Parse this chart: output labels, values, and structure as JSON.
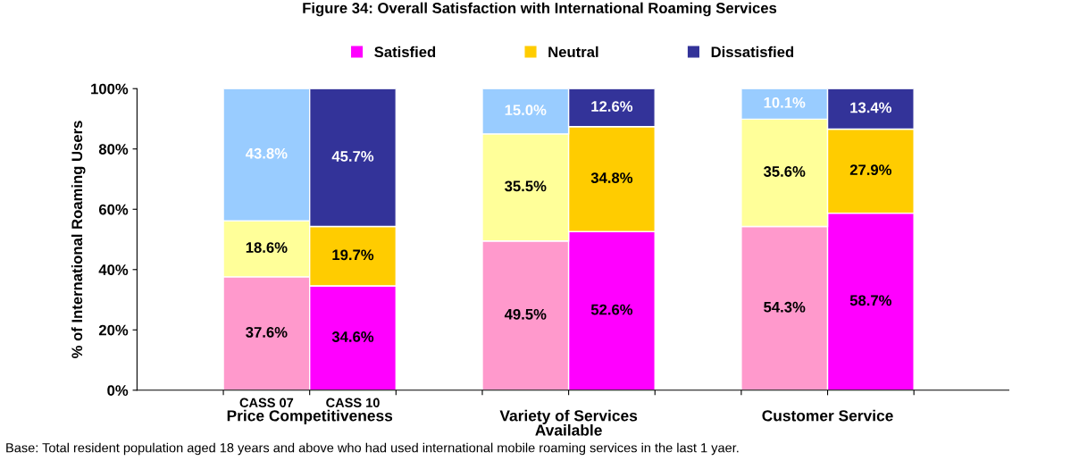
{
  "chart_data": {
    "type": "bar",
    "stacked": true,
    "title": "Figure 34: Overall Satisfaction with International Roaming Services",
    "ylabel": "% of International Roaming Users",
    "categories": [
      "CASS 07",
      "CASS 10",
      null,
      null,
      null,
      null,
      null,
      null
    ],
    "series": [
      {
        "name": "Satisfied",
        "color": "#ff00ff",
        "colors": [
          "#ff99cc",
          "#ff00ff",
          null,
          "#ff99cc",
          "#ff00ff",
          null,
          "#ff99cc",
          "#ff00ff"
        ],
        "values": [
          37.6,
          34.6,
          null,
          49.5,
          52.6,
          null,
          54.3,
          58.7
        ],
        "value_labels": [
          "37.6%",
          "34.6%",
          null,
          "49.5%",
          "52.6%",
          null,
          "54.3%",
          "58.7%"
        ]
      },
      {
        "name": "Neutral",
        "color": "#ffcc00",
        "colors": [
          "#ffff99",
          "#ffcc00",
          null,
          "#ffff99",
          "#ffcc00",
          null,
          "#ffff99",
          "#ffcc00"
        ],
        "values": [
          18.6,
          19.7,
          null,
          35.5,
          34.8,
          null,
          35.6,
          27.9
        ],
        "value_labels": [
          "18.6%",
          "19.7%",
          null,
          "35.5%",
          "34.8%",
          null,
          "35.6%",
          "27.9%"
        ]
      },
      {
        "name": "Dissatisfied",
        "color": "#333399",
        "colors": [
          "#99ccff",
          "#333399",
          null,
          "#99ccff",
          "#333399",
          null,
          "#99ccff",
          "#333399"
        ],
        "values": [
          43.8,
          45.7,
          null,
          15.0,
          12.6,
          null,
          10.1,
          13.4
        ],
        "value_labels": [
          "43.8%",
          "45.7%",
          null,
          "15.0%",
          "12.6%",
          null,
          "10.1%",
          "13.4%"
        ]
      }
    ],
    "ylim": [
      0,
      100
    ],
    "yticks": [
      {
        "value": 0,
        "label": "0%"
      },
      {
        "value": 20,
        "label": "20%"
      },
      {
        "value": 40,
        "label": "40%"
      },
      {
        "value": 60,
        "label": "60%"
      },
      {
        "value": 80,
        "label": "80%"
      },
      {
        "value": 100,
        "label": "100%"
      }
    ],
    "grid": false,
    "legend": "top",
    "annotations": [
      "Price Competitiveness",
      "Variety of Services\nAvailable",
      "Customer Service",
      "Base: Total resident population aged 18 years and above who had used international mobile roaming services in the last 1 yaer."
    ]
  }
}
